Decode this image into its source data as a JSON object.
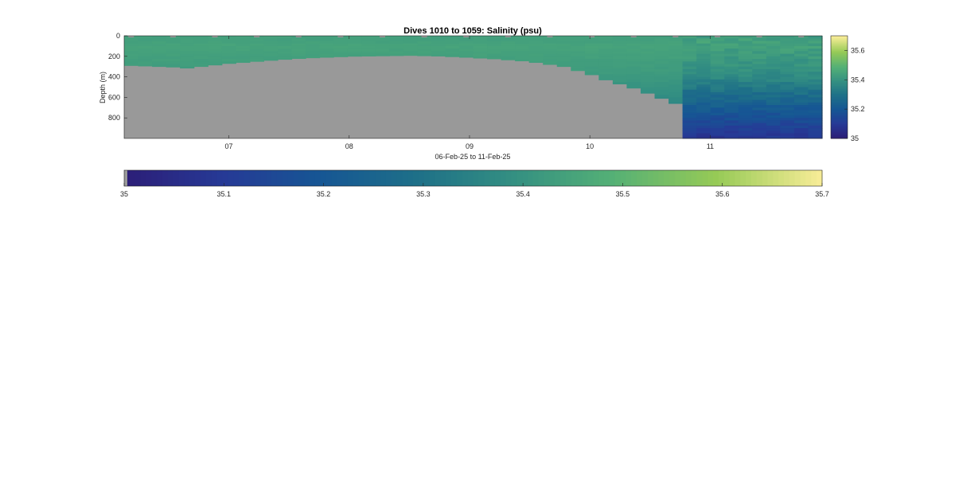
{
  "chart_data": {
    "type": "heatmap",
    "title": "Dives 1010 to 1059: Salinity (psu)",
    "xlabel": "06-Feb-25 to 11-Feb-25",
    "ylabel": "Depth (m)",
    "x_tick_labels": [
      "07",
      "08",
      "09",
      "10",
      "11"
    ],
    "x_tick_days": [
      7,
      8,
      9,
      10,
      11
    ],
    "xlim_days": [
      6.13,
      11.93
    ],
    "y_tick_labels": [
      "0",
      "200",
      "400",
      "600",
      "800"
    ],
    "y_ticks": [
      0,
      200,
      400,
      600,
      800
    ],
    "ylim": [
      0,
      1000
    ],
    "y_reversed": true,
    "colorbar_vertical": {
      "tick_labels": [
        "35",
        "35.2",
        "35.4",
        "35.6"
      ],
      "ticks": [
        35,
        35.2,
        35.4,
        35.6
      ],
      "range": [
        35,
        35.7
      ]
    },
    "colorbar_horizontal": {
      "tick_labels": [
        "35",
        "35.1",
        "35.2",
        "35.3",
        "35.4",
        "35.5",
        "35.6",
        "35.7"
      ],
      "ticks": [
        35,
        35.1,
        35.2,
        35.3,
        35.4,
        35.5,
        35.6,
        35.7
      ],
      "range": [
        35,
        35.7
      ]
    },
    "colormap": "parula",
    "nodata_color": "#999999",
    "dives": 50,
    "profile_max_depth_m": [
      290,
      295,
      300,
      305,
      315,
      300,
      285,
      270,
      260,
      250,
      240,
      230,
      222,
      215,
      210,
      205,
      200,
      198,
      196,
      194,
      192,
      195,
      198,
      204,
      210,
      218,
      225,
      235,
      245,
      260,
      280,
      300,
      340,
      380,
      430,
      470,
      510,
      560,
      610,
      660,
      1000,
      1000,
      1000,
      1000,
      1000,
      1000,
      1000,
      1000,
      1000,
      1000
    ],
    "salinity_profile": {
      "depths_m": [
        0,
        50,
        100,
        200,
        300,
        400,
        500,
        600,
        700,
        800,
        900,
        1000
      ],
      "shallow_dives": [
        35.44,
        35.44,
        35.45,
        35.44,
        35.43,
        35.42,
        35.4,
        35.38,
        35.35,
        35.32,
        35.28,
        35.25
      ],
      "deep_dives": [
        35.43,
        35.44,
        35.44,
        35.42,
        35.4,
        35.37,
        35.32,
        35.27,
        35.22,
        35.17,
        35.12,
        35.08
      ]
    }
  }
}
